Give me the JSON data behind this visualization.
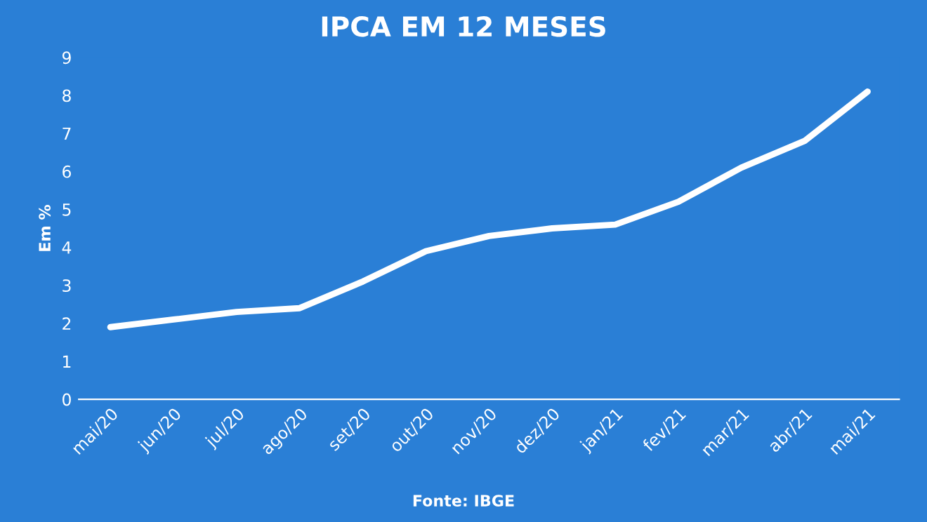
{
  "chart_data": {
    "type": "line",
    "title": "IPCA EM 12 MESES",
    "ylabel": "Em %",
    "categories": [
      "mai/20",
      "jun/20",
      "jul/20",
      "ago/20",
      "set/20",
      "out/20",
      "nov/20",
      "dez/20",
      "jan/21",
      "fev/21",
      "mar/21",
      "abr/21",
      "mai/21"
    ],
    "series": [
      {
        "color": "#ffffff",
        "values": [
          1.9,
          2.1,
          2.3,
          2.4,
          3.1,
          3.9,
          4.3,
          4.5,
          4.6,
          5.2,
          6.1,
          6.8,
          8.1
        ]
      }
    ],
    "ylim": [
      0,
      9
    ],
    "yticks": [
      0,
      1,
      2,
      3,
      4,
      5,
      6,
      7,
      8,
      9
    ],
    "grid": false,
    "legend": false,
    "marker": "none",
    "line_style": "solid",
    "annotations": [
      "Fonte: IBGE"
    ]
  }
}
